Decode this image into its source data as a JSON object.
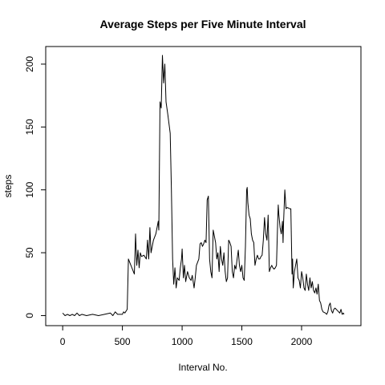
{
  "chart_data": {
    "type": "line",
    "title": "Average Steps per Five Minute Interval",
    "xlabel": "Interval No.",
    "ylabel": "steps",
    "xlim": [
      -142,
      2497
    ],
    "ylim": [
      -8,
      214
    ],
    "x_ticks": [
      0,
      500,
      1000,
      1500,
      2000
    ],
    "y_ticks": [
      0,
      50,
      100,
      150,
      200
    ],
    "grid": false,
    "series": [
      {
        "values": [
          [
            0,
            2
          ],
          [
            20,
            0
          ],
          [
            40,
            1
          ],
          [
            60,
            0
          ],
          [
            80,
            1
          ],
          [
            100,
            0
          ],
          [
            120,
            2
          ],
          [
            140,
            0
          ],
          [
            160,
            1
          ],
          [
            200,
            0
          ],
          [
            250,
            1
          ],
          [
            300,
            0
          ],
          [
            350,
            1
          ],
          [
            400,
            2
          ],
          [
            420,
            0
          ],
          [
            440,
            3
          ],
          [
            460,
            1
          ],
          [
            500,
            1
          ],
          [
            510,
            3
          ],
          [
            520,
            2
          ],
          [
            540,
            5
          ],
          [
            550,
            45
          ],
          [
            600,
            33
          ],
          [
            610,
            65
          ],
          [
            620,
            40
          ],
          [
            630,
            52
          ],
          [
            640,
            38
          ],
          [
            650,
            50
          ],
          [
            660,
            47
          ],
          [
            680,
            48
          ],
          [
            700,
            45
          ],
          [
            710,
            60
          ],
          [
            720,
            45
          ],
          [
            730,
            70
          ],
          [
            740,
            50
          ],
          [
            760,
            60
          ],
          [
            780,
            65
          ],
          [
            800,
            75
          ],
          [
            805,
            68
          ],
          [
            815,
            170
          ],
          [
            825,
            165
          ],
          [
            835,
            207
          ],
          [
            845,
            185
          ],
          [
            855,
            200
          ],
          [
            865,
            170
          ],
          [
            880,
            160
          ],
          [
            900,
            145
          ],
          [
            910,
            100
          ],
          [
            920,
            45
          ],
          [
            930,
            25
          ],
          [
            940,
            38
          ],
          [
            950,
            22
          ],
          [
            960,
            30
          ],
          [
            975,
            28
          ],
          [
            985,
            38
          ],
          [
            995,
            45
          ],
          [
            1000,
            53
          ],
          [
            1010,
            30
          ],
          [
            1020,
            40
          ],
          [
            1030,
            27
          ],
          [
            1045,
            35
          ],
          [
            1060,
            30
          ],
          [
            1075,
            28
          ],
          [
            1085,
            32
          ],
          [
            1100,
            22
          ],
          [
            1110,
            30
          ],
          [
            1120,
            40
          ],
          [
            1140,
            45
          ],
          [
            1150,
            57
          ],
          [
            1160,
            58
          ],
          [
            1170,
            55
          ],
          [
            1180,
            57
          ],
          [
            1190,
            60
          ],
          [
            1200,
            58
          ],
          [
            1210,
            92
          ],
          [
            1220,
            95
          ],
          [
            1230,
            45
          ],
          [
            1240,
            35
          ],
          [
            1250,
            30
          ],
          [
            1260,
            68
          ],
          [
            1280,
            58
          ],
          [
            1290,
            45
          ],
          [
            1300,
            50
          ],
          [
            1310,
            35
          ],
          [
            1320,
            55
          ],
          [
            1330,
            45
          ],
          [
            1340,
            40
          ],
          [
            1350,
            50
          ],
          [
            1360,
            35
          ],
          [
            1370,
            27
          ],
          [
            1380,
            30
          ],
          [
            1390,
            60
          ],
          [
            1400,
            58
          ],
          [
            1410,
            55
          ],
          [
            1420,
            35
          ],
          [
            1430,
            30
          ],
          [
            1440,
            40
          ],
          [
            1450,
            37
          ],
          [
            1460,
            45
          ],
          [
            1470,
            52
          ],
          [
            1480,
            40
          ],
          [
            1490,
            35
          ],
          [
            1500,
            40
          ],
          [
            1510,
            30
          ],
          [
            1520,
            28
          ],
          [
            1530,
            55
          ],
          [
            1540,
            100
          ],
          [
            1545,
            102
          ],
          [
            1550,
            90
          ],
          [
            1560,
            80
          ],
          [
            1570,
            77
          ],
          [
            1580,
            65
          ],
          [
            1590,
            60
          ],
          [
            1600,
            58
          ],
          [
            1610,
            40
          ],
          [
            1620,
            45
          ],
          [
            1630,
            48
          ],
          [
            1640,
            45
          ],
          [
            1650,
            45
          ],
          [
            1660,
            47
          ],
          [
            1670,
            48
          ],
          [
            1680,
            60
          ],
          [
            1690,
            78
          ],
          [
            1700,
            65
          ],
          [
            1710,
            60
          ],
          [
            1720,
            80
          ],
          [
            1730,
            35
          ],
          [
            1740,
            38
          ],
          [
            1750,
            40
          ],
          [
            1760,
            38
          ],
          [
            1770,
            37
          ],
          [
            1780,
            38
          ],
          [
            1790,
            40
          ],
          [
            1800,
            75
          ],
          [
            1805,
            88
          ],
          [
            1810,
            80
          ],
          [
            1820,
            70
          ],
          [
            1830,
            65
          ],
          [
            1840,
            75
          ],
          [
            1845,
            58
          ],
          [
            1850,
            75
          ],
          [
            1860,
            100
          ],
          [
            1870,
            85
          ],
          [
            1880,
            86
          ],
          [
            1900,
            85
          ],
          [
            1910,
            85
          ],
          [
            1920,
            33
          ],
          [
            1925,
            45
          ],
          [
            1930,
            22
          ],
          [
            1940,
            35
          ],
          [
            1950,
            40
          ],
          [
            1960,
            45
          ],
          [
            1970,
            30
          ],
          [
            1980,
            28
          ],
          [
            1990,
            22
          ],
          [
            2000,
            35
          ],
          [
            2010,
            30
          ],
          [
            2020,
            22
          ],
          [
            2030,
            20
          ],
          [
            2040,
            33
          ],
          [
            2050,
            25
          ],
          [
            2060,
            20
          ],
          [
            2070,
            30
          ],
          [
            2080,
            22
          ],
          [
            2090,
            27
          ],
          [
            2100,
            20
          ],
          [
            2110,
            18
          ],
          [
            2120,
            22
          ],
          [
            2130,
            17
          ],
          [
            2140,
            25
          ],
          [
            2150,
            12
          ],
          [
            2160,
            10
          ],
          [
            2170,
            5
          ],
          [
            2180,
            3
          ],
          [
            2200,
            2
          ],
          [
            2210,
            1
          ],
          [
            2220,
            3
          ],
          [
            2230,
            8
          ],
          [
            2240,
            10
          ],
          [
            2250,
            4
          ],
          [
            2260,
            2
          ],
          [
            2270,
            5
          ],
          [
            2280,
            6
          ],
          [
            2300,
            4
          ],
          [
            2310,
            3
          ],
          [
            2320,
            2
          ],
          [
            2330,
            5
          ],
          [
            2340,
            1
          ],
          [
            2350,
            2
          ],
          [
            2355,
            1
          ]
        ]
      }
    ]
  }
}
